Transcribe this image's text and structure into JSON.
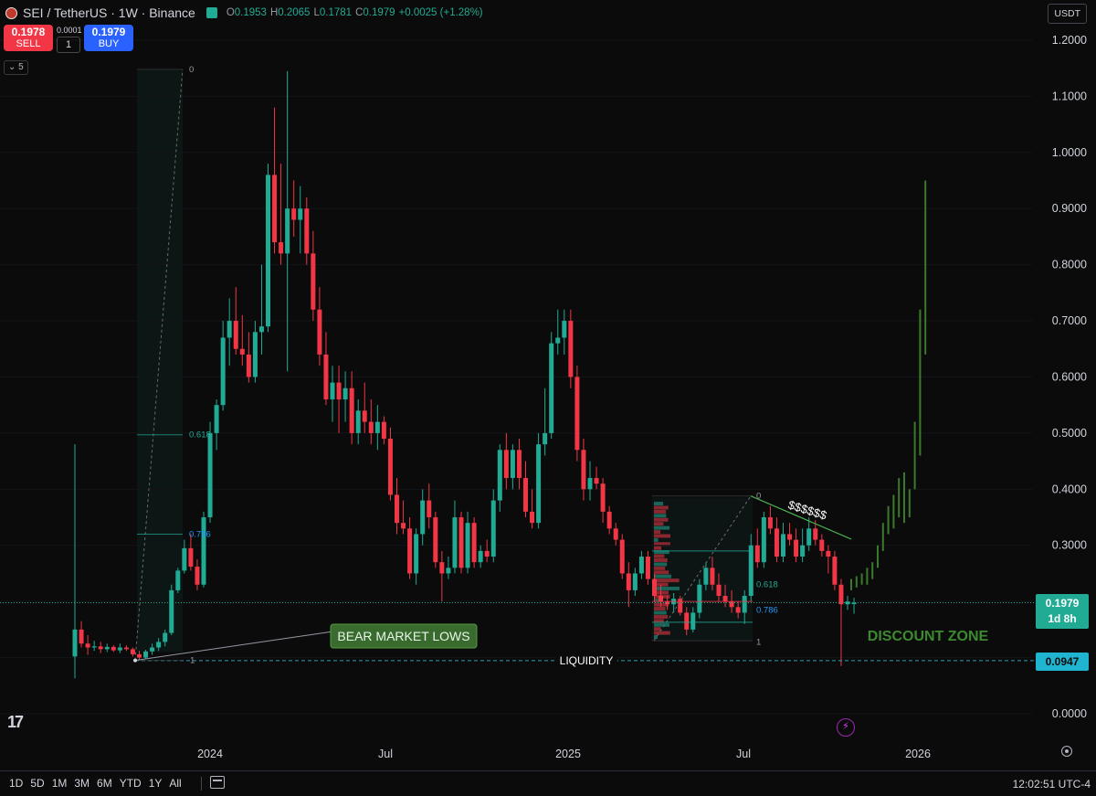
{
  "header": {
    "symbol": "SEI / TetherUS · 1W · Binance",
    "ohlc": {
      "o_label": "O",
      "o": "0.1953",
      "h_label": "H",
      "h": "0.2065",
      "l_label": "L",
      "l": "0.1781",
      "c_label": "C",
      "c": "0.1979",
      "change": "+0.0025 (+1.28%)"
    },
    "currency": "USDT"
  },
  "trade": {
    "sell_price": "0.1978",
    "sell_label": "SELL",
    "spread": "0.0001",
    "quantity": "1",
    "buy_price": "0.1979",
    "buy_label": "BUY"
  },
  "indicator_toggle": "⌄ 5",
  "colors": {
    "up": "#22ab94",
    "down": "#f23645",
    "background": "#0b0b0c",
    "projection": "#3b7a2a",
    "liquidity": "#2a9fb0"
  },
  "price_axis": [
    "1.2000",
    "1.1000",
    "1.0000",
    "0.9000",
    "0.8000",
    "0.7000",
    "0.6000",
    "0.5000",
    "0.4000",
    "0.3000",
    "0.2000",
    "0.1000",
    "0.0000"
  ],
  "time_axis": [
    "2024",
    "Jul",
    "2025",
    "Jul",
    "2026"
  ],
  "price_tags": {
    "current": "0.1979",
    "countdown": "1d 8h",
    "liquidity": "0.0947"
  },
  "annotations": {
    "bear_market_lows": "BEAR MARKET LOWS",
    "liquidity": "LIQUIDITY",
    "discount_zone": "DISCOUNT ZONE",
    "dollars": "$$$$$$",
    "fib_left": [
      "0",
      "0.618",
      "0.786",
      "1"
    ],
    "fib_right": [
      "0",
      "0.618",
      "0.786",
      "1"
    ]
  },
  "bottom_bar": {
    "ranges": [
      "1D",
      "5D",
      "1M",
      "3M",
      "6M",
      "YTD",
      "1Y",
      "All"
    ],
    "clock": "12:02:51 UTC-4"
  },
  "chart_data": {
    "type": "candlestick",
    "x_axis_ticks": [
      "2024",
      "Jul",
      "2025",
      "Jul",
      "2026"
    ],
    "y_range": [
      0,
      1.24
    ],
    "candles": [
      {
        "o": 0.102,
        "h": 0.48,
        "l": 0.063,
        "c": 0.15
      },
      {
        "o": 0.15,
        "h": 0.165,
        "l": 0.118,
        "c": 0.125
      },
      {
        "o": 0.125,
        "h": 0.14,
        "l": 0.105,
        "c": 0.118
      },
      {
        "o": 0.118,
        "h": 0.13,
        "l": 0.112,
        "c": 0.12
      },
      {
        "o": 0.12,
        "h": 0.128,
        "l": 0.108,
        "c": 0.115
      },
      {
        "o": 0.115,
        "h": 0.125,
        "l": 0.11,
        "c": 0.119
      },
      {
        "o": 0.119,
        "h": 0.122,
        "l": 0.11,
        "c": 0.113
      },
      {
        "o": 0.113,
        "h": 0.125,
        "l": 0.108,
        "c": 0.118
      },
      {
        "o": 0.118,
        "h": 0.122,
        "l": 0.112,
        "c": 0.115
      },
      {
        "o": 0.115,
        "h": 0.118,
        "l": 0.102,
        "c": 0.106
      },
      {
        "o": 0.106,
        "h": 0.112,
        "l": 0.096,
        "c": 0.1
      },
      {
        "o": 0.1,
        "h": 0.114,
        "l": 0.098,
        "c": 0.111
      },
      {
        "o": 0.111,
        "h": 0.125,
        "l": 0.105,
        "c": 0.118
      },
      {
        "o": 0.118,
        "h": 0.135,
        "l": 0.112,
        "c": 0.128
      },
      {
        "o": 0.128,
        "h": 0.15,
        "l": 0.12,
        "c": 0.144
      },
      {
        "o": 0.144,
        "h": 0.23,
        "l": 0.14,
        "c": 0.22
      },
      {
        "o": 0.22,
        "h": 0.26,
        "l": 0.215,
        "c": 0.255
      },
      {
        "o": 0.255,
        "h": 0.31,
        "l": 0.25,
        "c": 0.295
      },
      {
        "o": 0.295,
        "h": 0.32,
        "l": 0.255,
        "c": 0.262
      },
      {
        "o": 0.262,
        "h": 0.275,
        "l": 0.22,
        "c": 0.23
      },
      {
        "o": 0.23,
        "h": 0.36,
        "l": 0.225,
        "c": 0.35
      },
      {
        "o": 0.35,
        "h": 0.52,
        "l": 0.34,
        "c": 0.5
      },
      {
        "o": 0.5,
        "h": 0.56,
        "l": 0.47,
        "c": 0.55
      },
      {
        "o": 0.55,
        "h": 0.7,
        "l": 0.54,
        "c": 0.67
      },
      {
        "o": 0.67,
        "h": 0.74,
        "l": 0.62,
        "c": 0.7
      },
      {
        "o": 0.7,
        "h": 0.76,
        "l": 0.64,
        "c": 0.65
      },
      {
        "o": 0.65,
        "h": 0.71,
        "l": 0.62,
        "c": 0.64
      },
      {
        "o": 0.64,
        "h": 0.68,
        "l": 0.59,
        "c": 0.6
      },
      {
        "o": 0.6,
        "h": 0.7,
        "l": 0.59,
        "c": 0.68
      },
      {
        "o": 0.68,
        "h": 0.8,
        "l": 0.64,
        "c": 0.69
      },
      {
        "o": 0.69,
        "h": 0.98,
        "l": 0.68,
        "c": 0.96
      },
      {
        "o": 0.96,
        "h": 1.08,
        "l": 0.82,
        "c": 0.84
      },
      {
        "o": 0.84,
        "h": 0.98,
        "l": 0.8,
        "c": 0.82
      },
      {
        "o": 0.82,
        "h": 1.145,
        "l": 0.61,
        "c": 0.9
      },
      {
        "o": 0.9,
        "h": 0.95,
        "l": 0.85,
        "c": 0.88
      },
      {
        "o": 0.88,
        "h": 0.94,
        "l": 0.82,
        "c": 0.9
      },
      {
        "o": 0.9,
        "h": 0.92,
        "l": 0.8,
        "c": 0.82
      },
      {
        "o": 0.82,
        "h": 0.86,
        "l": 0.7,
        "c": 0.72
      },
      {
        "o": 0.72,
        "h": 0.76,
        "l": 0.62,
        "c": 0.64
      },
      {
        "o": 0.64,
        "h": 0.68,
        "l": 0.55,
        "c": 0.56
      },
      {
        "o": 0.56,
        "h": 0.62,
        "l": 0.52,
        "c": 0.59
      },
      {
        "o": 0.59,
        "h": 0.62,
        "l": 0.5,
        "c": 0.56
      },
      {
        "o": 0.56,
        "h": 0.61,
        "l": 0.52,
        "c": 0.58
      },
      {
        "o": 0.58,
        "h": 0.61,
        "l": 0.48,
        "c": 0.5
      },
      {
        "o": 0.5,
        "h": 0.56,
        "l": 0.48,
        "c": 0.54
      },
      {
        "o": 0.54,
        "h": 0.59,
        "l": 0.5,
        "c": 0.52
      },
      {
        "o": 0.52,
        "h": 0.56,
        "l": 0.48,
        "c": 0.5
      },
      {
        "o": 0.5,
        "h": 0.55,
        "l": 0.47,
        "c": 0.52
      },
      {
        "o": 0.52,
        "h": 0.53,
        "l": 0.48,
        "c": 0.49
      },
      {
        "o": 0.49,
        "h": 0.51,
        "l": 0.38,
        "c": 0.39
      },
      {
        "o": 0.39,
        "h": 0.42,
        "l": 0.32,
        "c": 0.34
      },
      {
        "o": 0.34,
        "h": 0.38,
        "l": 0.32,
        "c": 0.33
      },
      {
        "o": 0.33,
        "h": 0.35,
        "l": 0.24,
        "c": 0.25
      },
      {
        "o": 0.25,
        "h": 0.33,
        "l": 0.23,
        "c": 0.32
      },
      {
        "o": 0.32,
        "h": 0.4,
        "l": 0.3,
        "c": 0.38
      },
      {
        "o": 0.38,
        "h": 0.41,
        "l": 0.33,
        "c": 0.35
      },
      {
        "o": 0.35,
        "h": 0.36,
        "l": 0.26,
        "c": 0.27
      },
      {
        "o": 0.27,
        "h": 0.29,
        "l": 0.2,
        "c": 0.25
      },
      {
        "o": 0.25,
        "h": 0.28,
        "l": 0.24,
        "c": 0.26
      },
      {
        "o": 0.26,
        "h": 0.38,
        "l": 0.25,
        "c": 0.35
      },
      {
        "o": 0.35,
        "h": 0.36,
        "l": 0.25,
        "c": 0.26
      },
      {
        "o": 0.26,
        "h": 0.36,
        "l": 0.25,
        "c": 0.34
      },
      {
        "o": 0.34,
        "h": 0.35,
        "l": 0.26,
        "c": 0.27
      },
      {
        "o": 0.27,
        "h": 0.3,
        "l": 0.26,
        "c": 0.29
      },
      {
        "o": 0.29,
        "h": 0.31,
        "l": 0.27,
        "c": 0.28
      },
      {
        "o": 0.28,
        "h": 0.4,
        "l": 0.27,
        "c": 0.38
      },
      {
        "o": 0.38,
        "h": 0.48,
        "l": 0.36,
        "c": 0.47
      },
      {
        "o": 0.47,
        "h": 0.5,
        "l": 0.4,
        "c": 0.42
      },
      {
        "o": 0.42,
        "h": 0.48,
        "l": 0.4,
        "c": 0.47
      },
      {
        "o": 0.47,
        "h": 0.49,
        "l": 0.4,
        "c": 0.42
      },
      {
        "o": 0.42,
        "h": 0.45,
        "l": 0.35,
        "c": 0.36
      },
      {
        "o": 0.36,
        "h": 0.4,
        "l": 0.33,
        "c": 0.34
      },
      {
        "o": 0.34,
        "h": 0.5,
        "l": 0.33,
        "c": 0.48
      },
      {
        "o": 0.48,
        "h": 0.58,
        "l": 0.46,
        "c": 0.5
      },
      {
        "o": 0.5,
        "h": 0.68,
        "l": 0.49,
        "c": 0.66
      },
      {
        "o": 0.66,
        "h": 0.72,
        "l": 0.64,
        "c": 0.67
      },
      {
        "o": 0.67,
        "h": 0.72,
        "l": 0.64,
        "c": 0.7
      },
      {
        "o": 0.7,
        "h": 0.72,
        "l": 0.58,
        "c": 0.6
      },
      {
        "o": 0.6,
        "h": 0.62,
        "l": 0.45,
        "c": 0.47
      },
      {
        "o": 0.47,
        "h": 0.49,
        "l": 0.38,
        "c": 0.4
      },
      {
        "o": 0.4,
        "h": 0.45,
        "l": 0.38,
        "c": 0.42
      },
      {
        "o": 0.42,
        "h": 0.44,
        "l": 0.4,
        "c": 0.41
      },
      {
        "o": 0.41,
        "h": 0.42,
        "l": 0.34,
        "c": 0.36
      },
      {
        "o": 0.36,
        "h": 0.37,
        "l": 0.32,
        "c": 0.33
      },
      {
        "o": 0.33,
        "h": 0.34,
        "l": 0.3,
        "c": 0.31
      },
      {
        "o": 0.31,
        "h": 0.32,
        "l": 0.24,
        "c": 0.25
      },
      {
        "o": 0.25,
        "h": 0.27,
        "l": 0.19,
        "c": 0.22
      },
      {
        "o": 0.22,
        "h": 0.26,
        "l": 0.21,
        "c": 0.25
      },
      {
        "o": 0.25,
        "h": 0.29,
        "l": 0.24,
        "c": 0.28
      },
      {
        "o": 0.28,
        "h": 0.29,
        "l": 0.23,
        "c": 0.24
      },
      {
        "o": 0.24,
        "h": 0.25,
        "l": 0.2,
        "c": 0.21
      },
      {
        "o": 0.21,
        "h": 0.23,
        "l": 0.19,
        "c": 0.2
      },
      {
        "o": 0.2,
        "h": 0.21,
        "l": 0.185,
        "c": 0.195
      },
      {
        "o": 0.195,
        "h": 0.215,
        "l": 0.18,
        "c": 0.205
      },
      {
        "o": 0.205,
        "h": 0.21,
        "l": 0.175,
        "c": 0.18
      },
      {
        "o": 0.18,
        "h": 0.19,
        "l": 0.14,
        "c": 0.15
      },
      {
        "o": 0.15,
        "h": 0.19,
        "l": 0.145,
        "c": 0.18
      },
      {
        "o": 0.18,
        "h": 0.24,
        "l": 0.17,
        "c": 0.23
      },
      {
        "o": 0.23,
        "h": 0.27,
        "l": 0.22,
        "c": 0.26
      },
      {
        "o": 0.26,
        "h": 0.28,
        "l": 0.22,
        "c": 0.23
      },
      {
        "o": 0.23,
        "h": 0.25,
        "l": 0.2,
        "c": 0.21
      },
      {
        "o": 0.21,
        "h": 0.23,
        "l": 0.19,
        "c": 0.2
      },
      {
        "o": 0.2,
        "h": 0.22,
        "l": 0.18,
        "c": 0.19
      },
      {
        "o": 0.19,
        "h": 0.2,
        "l": 0.17,
        "c": 0.18
      },
      {
        "o": 0.18,
        "h": 0.22,
        "l": 0.16,
        "c": 0.21
      },
      {
        "o": 0.21,
        "h": 0.32,
        "l": 0.2,
        "c": 0.3
      },
      {
        "o": 0.3,
        "h": 0.33,
        "l": 0.26,
        "c": 0.27
      },
      {
        "o": 0.27,
        "h": 0.36,
        "l": 0.26,
        "c": 0.35
      },
      {
        "o": 0.35,
        "h": 0.37,
        "l": 0.32,
        "c": 0.33
      },
      {
        "o": 0.33,
        "h": 0.35,
        "l": 0.27,
        "c": 0.28
      },
      {
        "o": 0.28,
        "h": 0.34,
        "l": 0.27,
        "c": 0.32
      },
      {
        "o": 0.32,
        "h": 0.34,
        "l": 0.3,
        "c": 0.31
      },
      {
        "o": 0.31,
        "h": 0.33,
        "l": 0.27,
        "c": 0.28
      },
      {
        "o": 0.28,
        "h": 0.33,
        "l": 0.27,
        "c": 0.3
      },
      {
        "o": 0.3,
        "h": 0.35,
        "l": 0.29,
        "c": 0.33
      },
      {
        "o": 0.33,
        "h": 0.345,
        "l": 0.3,
        "c": 0.31
      },
      {
        "o": 0.31,
        "h": 0.32,
        "l": 0.28,
        "c": 0.29
      },
      {
        "o": 0.29,
        "h": 0.3,
        "l": 0.25,
        "c": 0.28
      },
      {
        "o": 0.28,
        "h": 0.29,
        "l": 0.22,
        "c": 0.23
      },
      {
        "o": 0.23,
        "h": 0.24,
        "l": 0.085,
        "c": 0.195
      },
      {
        "o": 0.195,
        "h": 0.21,
        "l": 0.185,
        "c": 0.2
      },
      {
        "o": 0.1953,
        "h": 0.2065,
        "l": 0.1781,
        "c": 0.1979
      }
    ],
    "projection": [
      {
        "l": 0.22,
        "h": 0.24
      },
      {
        "l": 0.225,
        "h": 0.245
      },
      {
        "l": 0.23,
        "h": 0.25
      },
      {
        "l": 0.23,
        "h": 0.26
      },
      {
        "l": 0.24,
        "h": 0.27
      },
      {
        "l": 0.26,
        "h": 0.3
      },
      {
        "l": 0.29,
        "h": 0.34
      },
      {
        "l": 0.32,
        "h": 0.37
      },
      {
        "l": 0.33,
        "h": 0.39
      },
      {
        "l": 0.35,
        "h": 0.42
      },
      {
        "l": 0.34,
        "h": 0.43
      },
      {
        "l": 0.35,
        "h": 0.4
      },
      {
        "l": 0.4,
        "h": 0.52
      },
      {
        "l": 0.46,
        "h": 0.72
      },
      {
        "l": 0.64,
        "h": 0.95
      }
    ]
  }
}
